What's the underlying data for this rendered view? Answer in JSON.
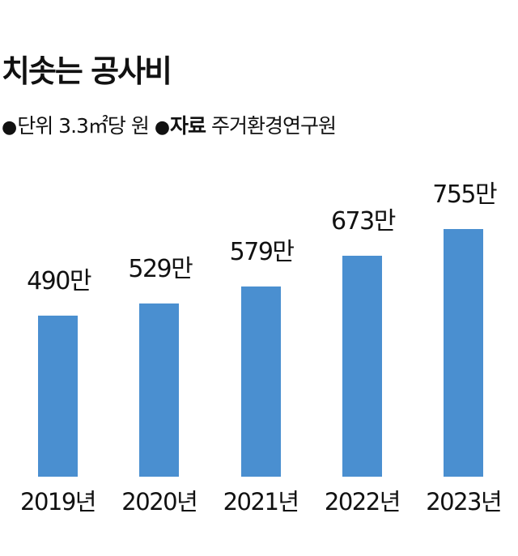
{
  "header": {
    "title": "치솟는 공사비",
    "unit_bullet": "●",
    "unit_label": "단위",
    "unit_value": "3.3㎡당 원",
    "source_bullet": "●",
    "source_label": "자료",
    "source_value": "주거환경연구원"
  },
  "colors": {
    "bar": "#4a8fd0",
    "text": "#111111",
    "background": "#ffffff"
  },
  "chart_data": {
    "type": "bar",
    "title": "치솟는 공사비",
    "subtitle": "단위 3.3㎡당 원 / 자료 주거환경연구원",
    "xlabel": "",
    "ylabel": "3.3㎡당 원",
    "categories": [
      "2019년",
      "2020년",
      "2021년",
      "2022년",
      "2023년"
    ],
    "values": [
      4900000,
      5290000,
      5790000,
      6730000,
      7550000
    ],
    "value_labels": [
      "490만",
      "529만",
      "579만",
      "673만",
      "755만"
    ],
    "ylim": [
      0,
      7550000
    ],
    "grid": false,
    "legend": "none"
  }
}
